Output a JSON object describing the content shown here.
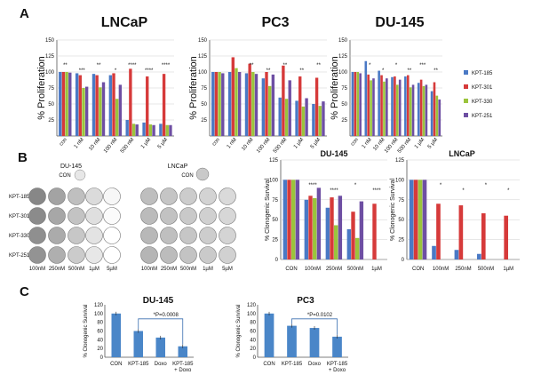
{
  "panels": {
    "a": "A",
    "b": "B",
    "c": "C"
  },
  "colors": {
    "blue": "#4a79c5",
    "red": "#d63a3a",
    "green": "#9bc43c",
    "purple": "#6e4fa3",
    "bar_c": "#4a86c8"
  },
  "legend": [
    "KPT-185",
    "KPT-301",
    "KPT-330",
    "KPT-251"
  ],
  "plates": {
    "du145_title": "DU-145",
    "lncap_title": "LNCaP",
    "con_label": "CON",
    "row_labels": [
      "KPT-185",
      "KPT-301",
      "KPT-330",
      "KPT-251"
    ],
    "du145_cols": [
      "100nM",
      "250nM",
      "500nM",
      "1µM",
      "5µM"
    ],
    "lncap_cols": [
      "100nM",
      "250nM",
      "500nM",
      "1µM",
      "5µM"
    ]
  },
  "chart_data": [
    {
      "type": "bar",
      "title": "LNCaP",
      "ylabel": "% Proliferation",
      "ylim": [
        0,
        150
      ],
      "categories": [
        "con",
        "1 nM",
        "10 nM",
        "100 nM",
        "500 nM",
        "1 µM",
        "5 µM"
      ],
      "series": [
        {
          "name": "KPT-185",
          "values": [
            100,
            98,
            97,
            95,
            25,
            21,
            19
          ]
        },
        {
          "name": "KPT-301",
          "values": [
            100,
            95,
            95,
            98,
            105,
            93,
            97
          ]
        },
        {
          "name": "KPT-330",
          "values": [
            100,
            75,
            76,
            58,
            19,
            18,
            17
          ]
        },
        {
          "name": "KPT-251",
          "values": [
            99,
            77,
            84,
            80,
            18,
            17,
            17
          ]
        }
      ],
      "annotations": [
        "**",
        "***",
        "**",
        "*",
        "****",
        "****",
        "****"
      ]
    },
    {
      "type": "bar",
      "title": "PC3",
      "ylabel": "% Proliferation",
      "ylim": [
        0,
        150
      ],
      "categories": [
        "con",
        "1 nM",
        "10 nM",
        "100 nM",
        "500 nM",
        "1 µM",
        "5 µM"
      ],
      "series": [
        {
          "name": "KPT-185",
          "values": [
            100,
            100,
            98,
            90,
            60,
            55,
            50
          ]
        },
        {
          "name": "KPT-301",
          "values": [
            100,
            123,
            113,
            100,
            110,
            93,
            91
          ]
        },
        {
          "name": "KPT-330",
          "values": [
            100,
            106,
            100,
            78,
            58,
            46,
            47
          ]
        },
        {
          "name": "KPT-251",
          "values": [
            98,
            100,
            97,
            96,
            87,
            59,
            54
          ]
        }
      ],
      "annotations": [
        "**",
        "**",
        "**",
        "**",
        "**"
      ]
    },
    {
      "type": "bar",
      "title": "DU-145",
      "ylabel": "% Proliferation",
      "ylim": [
        0,
        150
      ],
      "categories": [
        "con",
        "1 nM",
        "10 nM",
        "100 nM",
        "500 nM",
        "1 µM",
        "5 µM"
      ],
      "series": [
        {
          "name": "KPT-185",
          "values": [
            100,
            117,
            102,
            92,
            93,
            83,
            70
          ]
        },
        {
          "name": "KPT-301",
          "values": [
            100,
            96,
            95,
            93,
            95,
            88,
            84
          ]
        },
        {
          "name": "KPT-330",
          "values": [
            100,
            87,
            85,
            80,
            76,
            78,
            63
          ]
        },
        {
          "name": "KPT-251",
          "values": [
            98,
            90,
            90,
            88,
            80,
            80,
            57
          ]
        }
      ],
      "annotations": [
        "*",
        "*",
        "*",
        "**",
        "***",
        "**"
      ]
    },
    {
      "type": "bar",
      "title": "DU-145",
      "ylabel": "% Clonogenic Survival",
      "ylim": [
        0,
        125
      ],
      "categories": [
        "CON",
        "100nM",
        "250nM",
        "500nM",
        "1µM"
      ],
      "series": [
        {
          "name": "KPT-185",
          "values": [
            100,
            75,
            65,
            38,
            0
          ]
        },
        {
          "name": "KPT-301",
          "values": [
            100,
            80,
            78,
            60,
            70
          ]
        },
        {
          "name": "KPT-330",
          "values": [
            100,
            77,
            43,
            27,
            0
          ]
        },
        {
          "name": "KPT-251",
          "values": [
            100,
            90,
            80,
            73,
            0
          ]
        }
      ],
      "annotations": [
        "****",
        "****",
        "*",
        "****"
      ]
    },
    {
      "type": "bar",
      "title": "LNCaP",
      "ylabel": "% Clonogenic Survival",
      "ylim": [
        0,
        125
      ],
      "categories": [
        "CON",
        "100nM",
        "250nM",
        "500nM",
        "1µM"
      ],
      "series": [
        {
          "name": "KPT-185",
          "values": [
            100,
            17,
            12,
            7,
            0
          ]
        },
        {
          "name": "KPT-301",
          "values": [
            100,
            70,
            68,
            58,
            55
          ]
        },
        {
          "name": "KPT-330",
          "values": [
            100,
            0,
            0,
            0,
            0
          ]
        },
        {
          "name": "KPT-251",
          "values": [
            100,
            0,
            0,
            0,
            0
          ]
        }
      ],
      "annotations": [
        "*",
        "*",
        "*",
        "*"
      ]
    },
    {
      "type": "bar",
      "title": "DU-145",
      "ylabel": "% Clonogenic Survival",
      "ylim": [
        0,
        120
      ],
      "categories": [
        "CON",
        "KPT-185",
        "Doxo",
        "KPT-185\n+ Doxo"
      ],
      "values": [
        100,
        60,
        45,
        25
      ],
      "annotation": "*P=0.0008"
    },
    {
      "type": "bar",
      "title": "PC3",
      "ylabel": "% Clonogenic Survival",
      "ylim": [
        0,
        120
      ],
      "categories": [
        "CON",
        "KPT-185",
        "Doxo",
        "KPT-185\n+ Doxo"
      ],
      "values": [
        100,
        72,
        67,
        47
      ],
      "annotation": "*P=0.0102"
    }
  ]
}
